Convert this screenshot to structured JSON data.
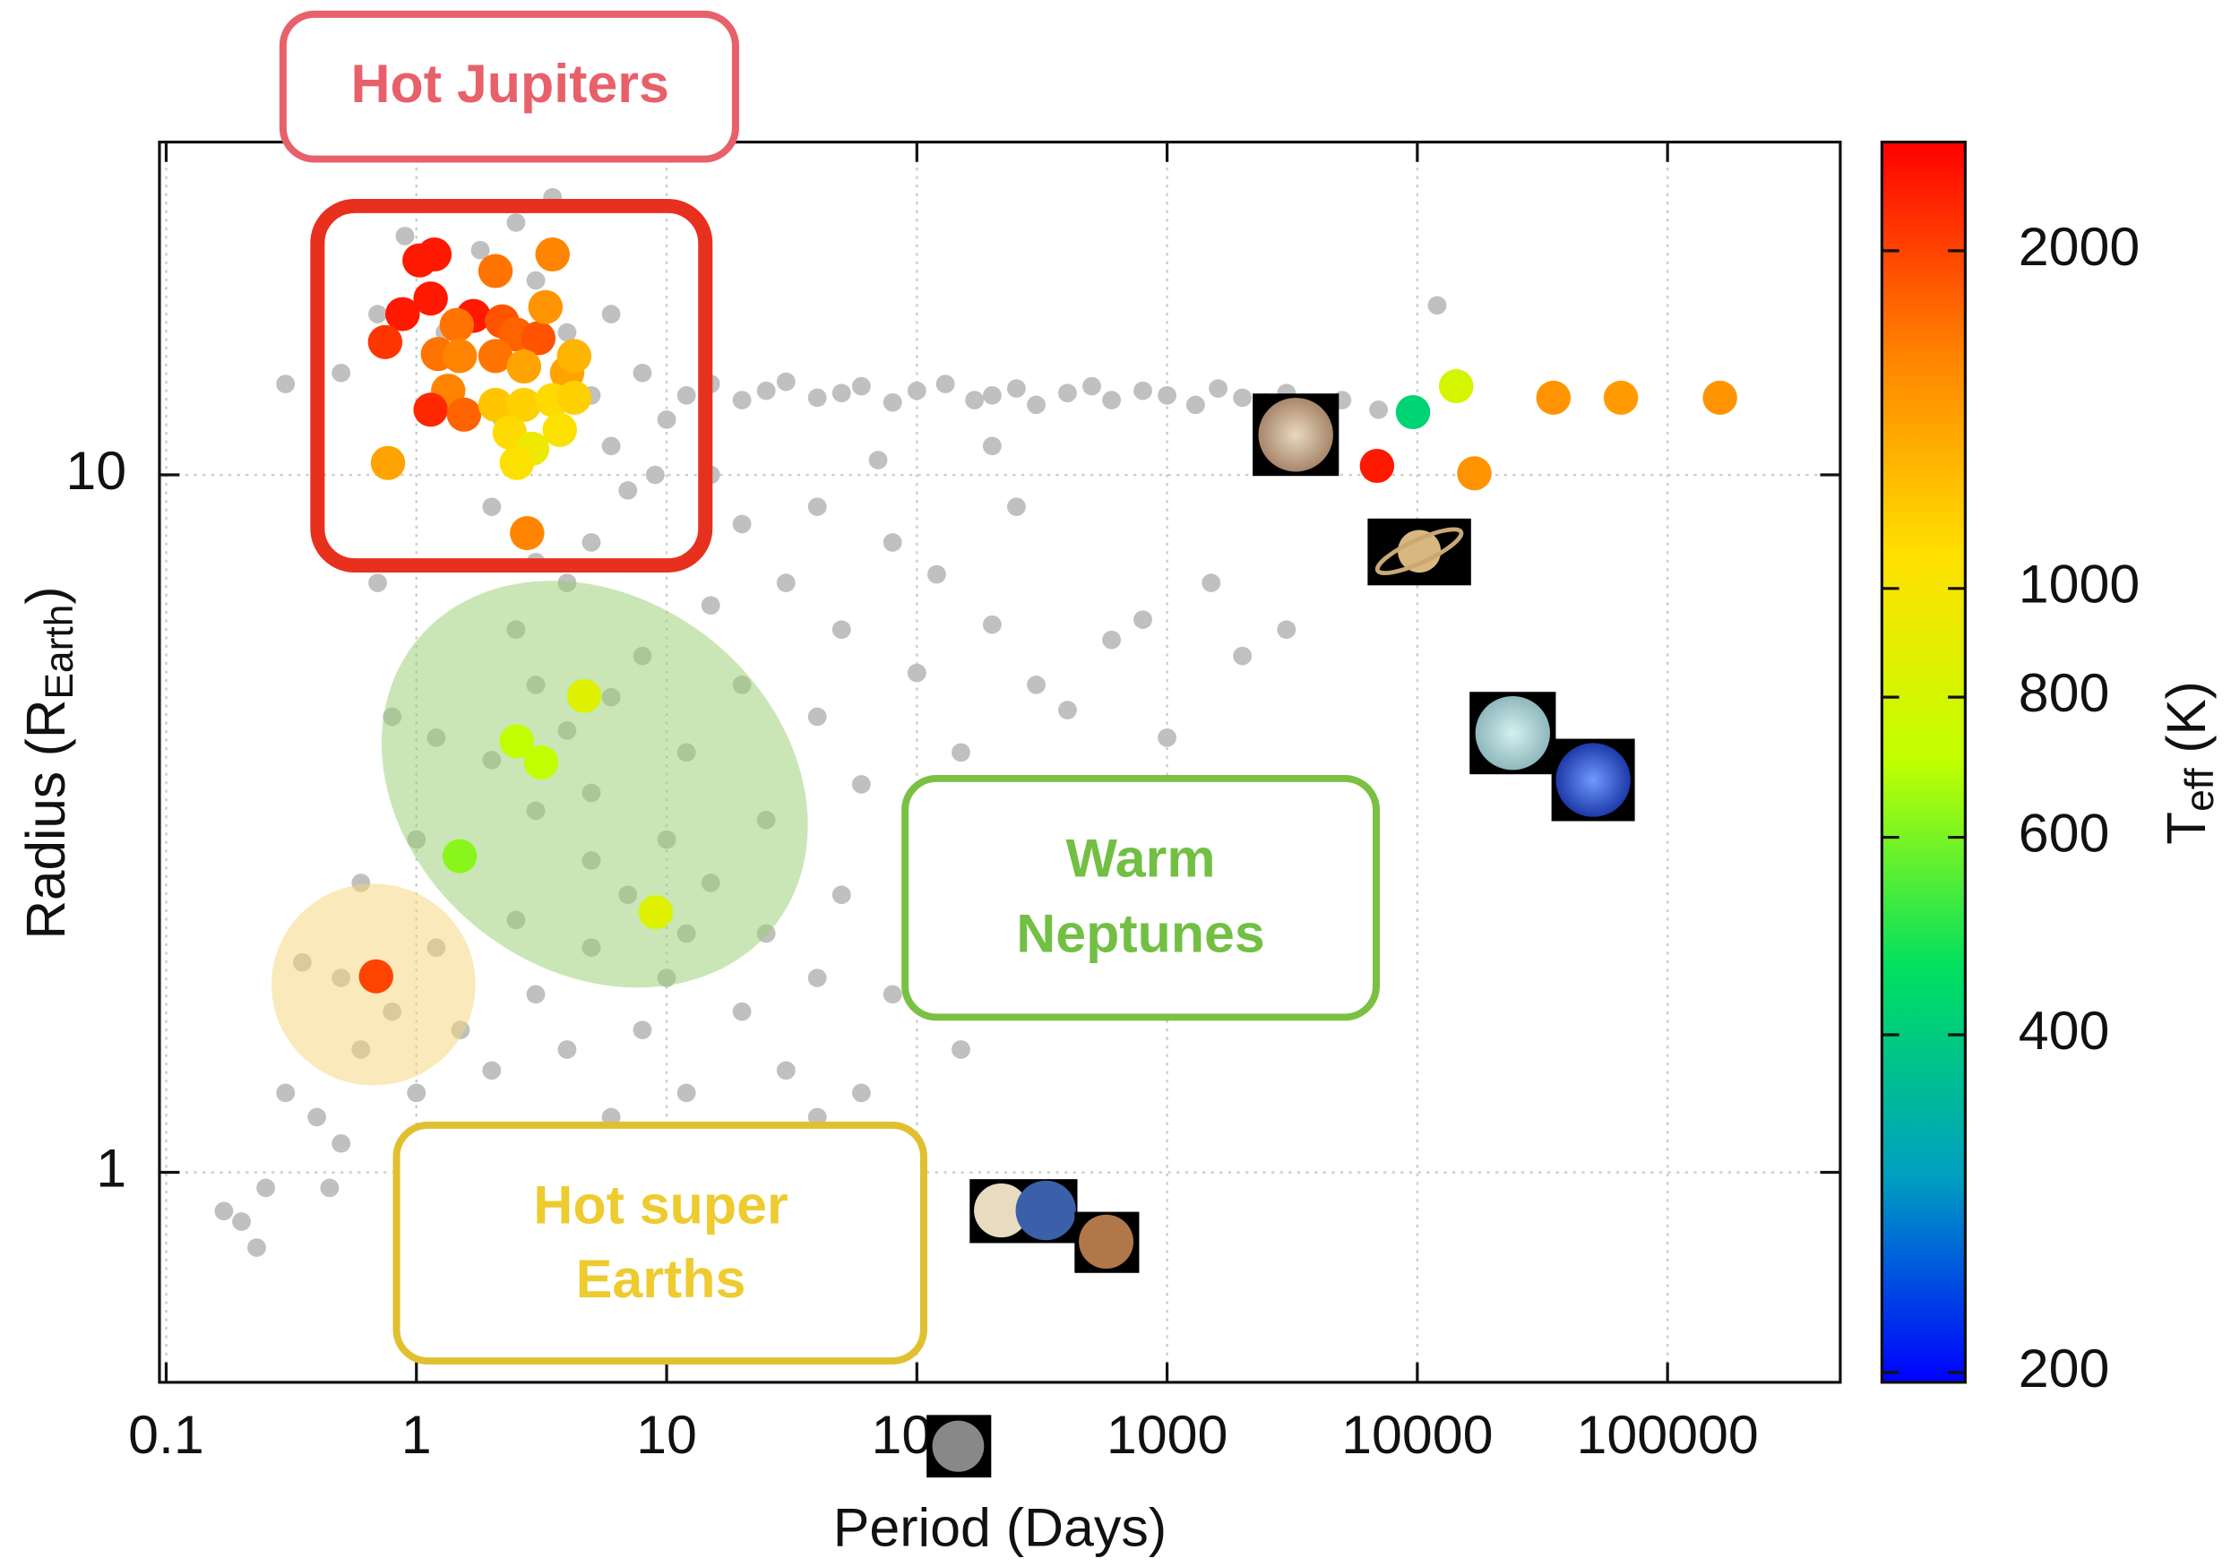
{
  "chart_data": {
    "type": "scatter",
    "xlabel": "Period (Days)",
    "ylabel": {
      "main": "Radius (R",
      "sub": "Earth",
      "end": ")"
    },
    "xscale": "log",
    "yscale": "log",
    "xlim": [
      0.094,
      490000
    ],
    "ylim": [
      0.5,
      30
    ],
    "xticks": [
      0.1,
      1,
      10,
      100,
      1000,
      10000,
      100000
    ],
    "yticks": [
      1,
      10
    ],
    "grid": true,
    "series": [
      {
        "color": "#c0c0c0",
        "x": [
          12,
          15,
          20,
          25,
          30,
          40,
          50,
          60,
          80,
          100,
          130,
          170,
          200,
          250,
          300,
          400,
          500,
          600,
          800,
          1000,
          1300,
          1600,
          2000,
          2500,
          3000,
          4000,
          5000,
          7000,
          0.3,
          0.5,
          0.7,
          0.9,
          1.3,
          1.8,
          2.5,
          3,
          4,
          5,
          6,
          7,
          8,
          5,
          4,
          6,
          2,
          3,
          9,
          10,
          3.5,
          2.2,
          2.5,
          3,
          4,
          5,
          6,
          8,
          10,
          12,
          15,
          20,
          25,
          30,
          40,
          50,
          60,
          80,
          100,
          120,
          150,
          200,
          250,
          300,
          400,
          600,
          800,
          1000,
          1500,
          2000,
          3000,
          20,
          15,
          40,
          70,
          200,
          5,
          3,
          2,
          1.2,
          7,
          12,
          0.5,
          0.6,
          0.8,
          1,
          1.2,
          1.5,
          2,
          2.5,
          3,
          4,
          5,
          6,
          8,
          10,
          12,
          15,
          20,
          25,
          30,
          40,
          50,
          60,
          80,
          100,
          150,
          200,
          0.4,
          0.45,
          0.3,
          0.2,
          0.17,
          0.23,
          0.5,
          1.5,
          2,
          3,
          5,
          8,
          10,
          20,
          40,
          0.9,
          1.5,
          4,
          0.25,
          0.35,
          0.6,
          1,
          0.8,
          0.7,
          12000
        ],
        "values": [
          13,
          13.5,
          12.8,
          13.2,
          13.6,
          12.9,
          13.1,
          13.4,
          12.7,
          13.2,
          13.5,
          12.8,
          13,
          13.3,
          12.6,
          13.1,
          13.4,
          12.8,
          13.2,
          13,
          12.6,
          13.3,
          12.9,
          12.7,
          13.1,
          12.5,
          12.8,
          12.4,
          13.5,
          14,
          17,
          22,
          16,
          21,
          23,
          19,
          16,
          13,
          11,
          9.5,
          14,
          8,
          7,
          17,
          9,
          7.5,
          10,
          12,
          25,
          12,
          6,
          5,
          4.3,
          3.5,
          4.8,
          5.5,
          3,
          4,
          6.5,
          5,
          3.2,
          7,
          4.5,
          6,
          3.6,
          8,
          5.2,
          7.2,
          4,
          6.1,
          9,
          5,
          4.6,
          5.8,
          6.2,
          4.2,
          7,
          5.5,
          6,
          8.5,
          10,
          9,
          10.5,
          11,
          2.8,
          3.3,
          3.9,
          4.2,
          2.5,
          2.2,
          1.9,
          1.5,
          1.7,
          1.3,
          2.1,
          1.6,
          1.4,
          2.3,
          1.8,
          1.5,
          2.1,
          1.2,
          1.6,
          1.9,
          1.3,
          2.6,
          1.7,
          2.2,
          1.4,
          1.9,
          2.5,
          1.3,
          1.8,
          2,
          1.5,
          2.3,
          1.2,
          0.95,
          1.3,
          0.85,
          0.88,
          0.78,
          1.1,
          0.9,
          1.1,
          0.75,
          0.85,
          0.95,
          0.65,
          1.05,
          1.2,
          0.6,
          0.7,
          0.55,
          0.95,
          2,
          2.6,
          3,
          4.5,
          7,
          17.5
        ]
      },
      {
        "colormap": [
          "#0000ff",
          "#00a0c0",
          "#00e060",
          "#c0ff00",
          "#ffe000",
          "#ff8000",
          "#ff0000"
        ],
        "x": [
          1.03,
          1.18,
          1.14,
          0.88,
          0.75,
          1.69,
          2.07,
          3.5,
          1.45,
          2.2,
          2.5,
          3.07,
          3.28,
          1.22,
          1.49,
          2.07,
          2.69,
          4,
          4.27,
          1.34,
          1.14,
          1.55,
          2.07,
          2.69,
          3.5,
          4.27,
          2.36,
          3.74,
          2.9,
          2.52,
          0.77,
          2.77,
          4.68,
          2.52,
          3.15,
          1.49,
          9.05,
          0.69,
          9610,
          14300,
          6900,
          16900,
          35000,
          65100,
          162000
        ],
        "values": [
          20.3,
          20.7,
          17.9,
          17,
          15.5,
          16.9,
          19.6,
          20.7,
          16.4,
          16.6,
          15.9,
          15.7,
          17.4,
          14.9,
          14.8,
          14.8,
          14.3,
          14,
          14.8,
          13.2,
          12.4,
          12.2,
          12.6,
          12.6,
          12.8,
          12.9,
          11.5,
          11.6,
          10.9,
          10.4,
          10.4,
          8.25,
          4.82,
          4.15,
          3.87,
          2.84,
          2.36,
          1.91,
          12.3,
          13.4,
          10.3,
          10.05,
          12.9,
          12.9,
          12.9
        ],
        "teff": [
          2300,
          2300,
          2300,
          2300,
          2100,
          2300,
          1700,
          1600,
          1700,
          1900,
          1800,
          1900,
          1500,
          1700,
          1600,
          1700,
          1400,
          1400,
          1300,
          1600,
          2200,
          1800,
          1200,
          1150,
          1100,
          1150,
          1100,
          1050,
          950,
          1050,
          1400,
          1600,
          850,
          700,
          700,
          620,
          850,
          2000,
          420,
          800,
          2300,
          1500,
          1500,
          1450,
          1500
        ]
      }
    ],
    "clabel": {
      "main": "T",
      "sub": "eff",
      "end": " (K)"
    },
    "clim": [
      196,
      2500
    ],
    "cscale": "log",
    "cticks": [
      200,
      400,
      600,
      800,
      1000,
      2000
    ],
    "annotations": [
      {
        "lines": [
          "Hot Jupiters"
        ]
      },
      {
        "lines": [
          "Warm",
          "Neptunes"
        ]
      },
      {
        "lines": [
          "Hot super",
          "Earths"
        ]
      }
    ]
  }
}
